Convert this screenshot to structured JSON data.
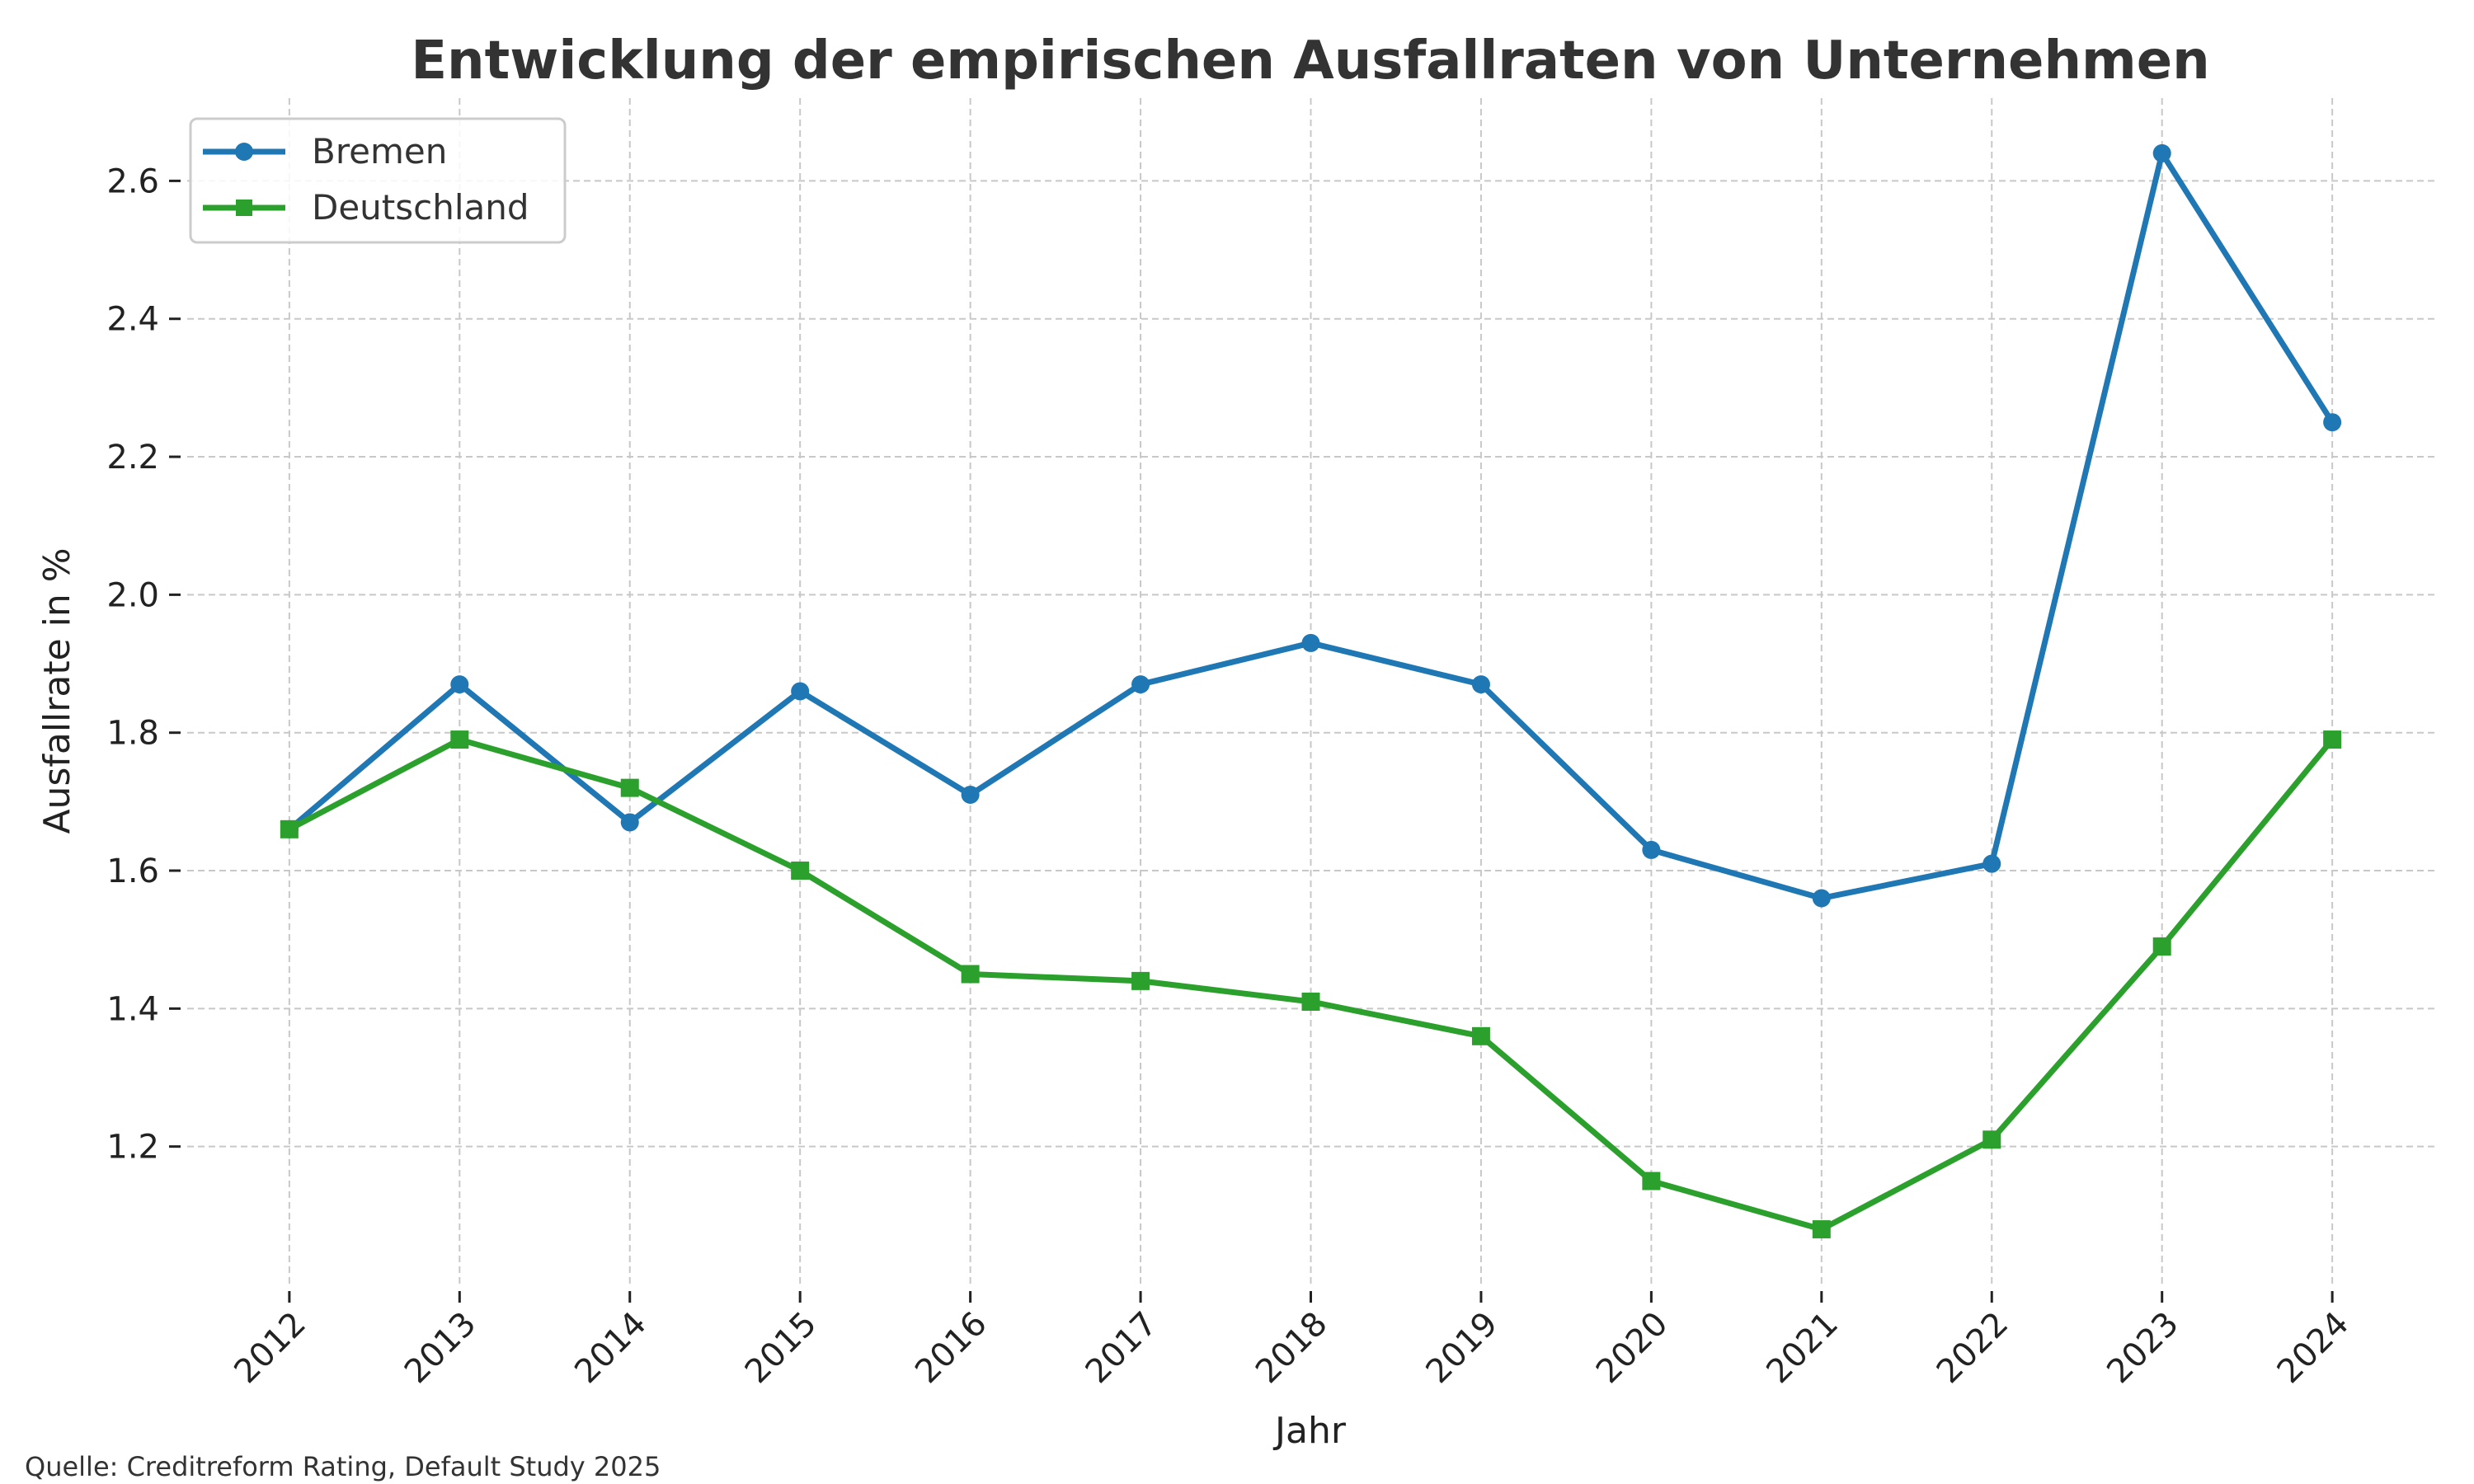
{
  "chart_data": {
    "type": "line",
    "title": "Entwicklung der empirischen Ausfallraten von Unternehmen",
    "xlabel": "Jahr",
    "ylabel": "Ausfallrate in %",
    "x": [
      2012,
      2013,
      2014,
      2015,
      2016,
      2017,
      2018,
      2019,
      2020,
      2021,
      2022,
      2023,
      2024
    ],
    "x_tick_labels": [
      "2012",
      "2013",
      "2014",
      "2015",
      "2016",
      "2017",
      "2018",
      "2019",
      "2020",
      "2021",
      "2022",
      "2023",
      "2024"
    ],
    "y_ticks": [
      1.2,
      1.4,
      1.6,
      1.8,
      2.0,
      2.2,
      2.4,
      2.6
    ],
    "y_tick_labels": [
      "1.2",
      "1.4",
      "1.6",
      "1.8",
      "2.0",
      "2.2",
      "2.4",
      "2.6"
    ],
    "xlim": [
      2011.4,
      2024.6
    ],
    "ylim": [
      1.0,
      2.72
    ],
    "grid": true,
    "legend_position": "top-left",
    "series": [
      {
        "name": "Bremen",
        "color": "#1f77b4",
        "marker": "circle",
        "values": [
          1.66,
          1.87,
          1.67,
          1.86,
          1.71,
          1.87,
          1.93,
          1.87,
          1.63,
          1.56,
          1.61,
          2.64,
          2.25
        ]
      },
      {
        "name": "Deutschland",
        "color": "#2ca02c",
        "marker": "square",
        "values": [
          1.66,
          1.79,
          1.72,
          1.6,
          1.45,
          1.44,
          1.41,
          1.36,
          1.15,
          1.08,
          1.21,
          1.49,
          1.79
        ]
      }
    ],
    "source_note": "Quelle: Creditreform Rating, Default Study 2025"
  }
}
